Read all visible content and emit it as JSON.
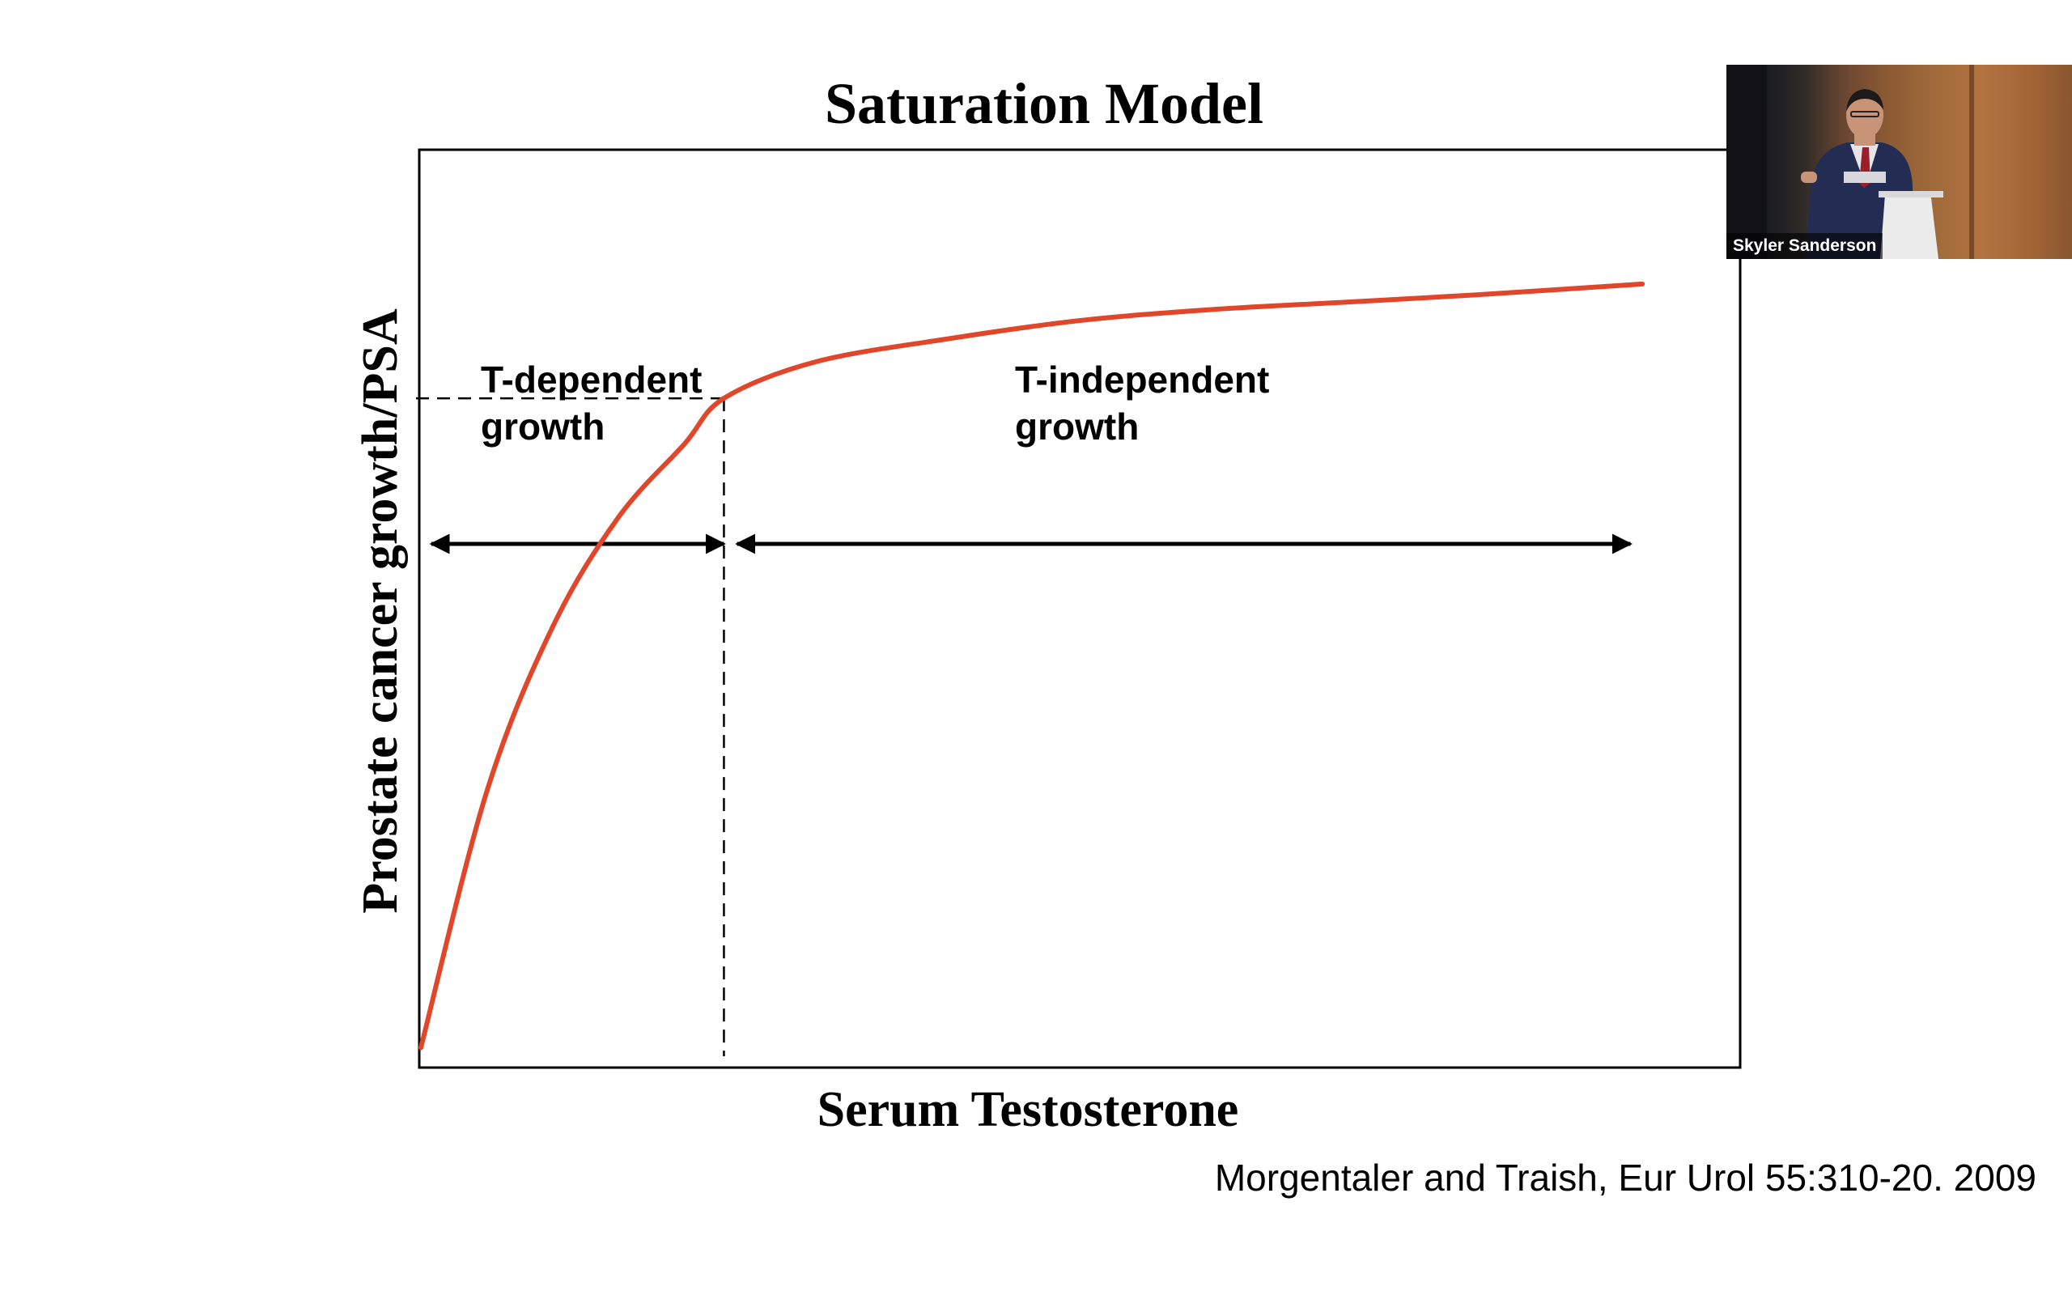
{
  "slide": {
    "title": "Saturation Model",
    "citation": "Morgentaler and Traish, Eur Urol 55:310-20. 2009"
  },
  "chart_data": {
    "type": "line",
    "title": "Saturation Model",
    "xlabel": "Serum Testosterone",
    "ylabel": "Prostate cancer growth/PSA",
    "xlim": [
      0,
      100
    ],
    "ylim": [
      0,
      100
    ],
    "grid": false,
    "x_ticks": [],
    "y_ticks": [],
    "series": [
      {
        "name": "Saturation curve",
        "color": "#e0462a",
        "x": [
          0,
          5,
          10,
          15,
          20,
          23,
          30,
          40,
          50,
          60,
          70,
          80,
          92.7
        ],
        "y": [
          2,
          30,
          48,
          60,
          68,
          73,
          77,
          79.5,
          81.5,
          82.7,
          83.5,
          84.3,
          85.5
        ]
      }
    ],
    "saturation_point": {
      "x": 23,
      "y": 73
    },
    "annotations": [
      {
        "label_line1": "T-dependent",
        "label_line2": "growth",
        "x_from": 0.8,
        "x_to": 23
      },
      {
        "label_line1": "T-independent",
        "label_line2": "growth",
        "x_from": 24,
        "x_to": 91.8
      }
    ]
  },
  "video": {
    "speaker_name": "Skyler Sanderson",
    "colors": {
      "suit": "#232c52",
      "skin": "#c79478",
      "shirt": "#e6e6ea",
      "tie": "#9a1f2a",
      "podium": "#ececec",
      "curtain": "#121218"
    }
  }
}
